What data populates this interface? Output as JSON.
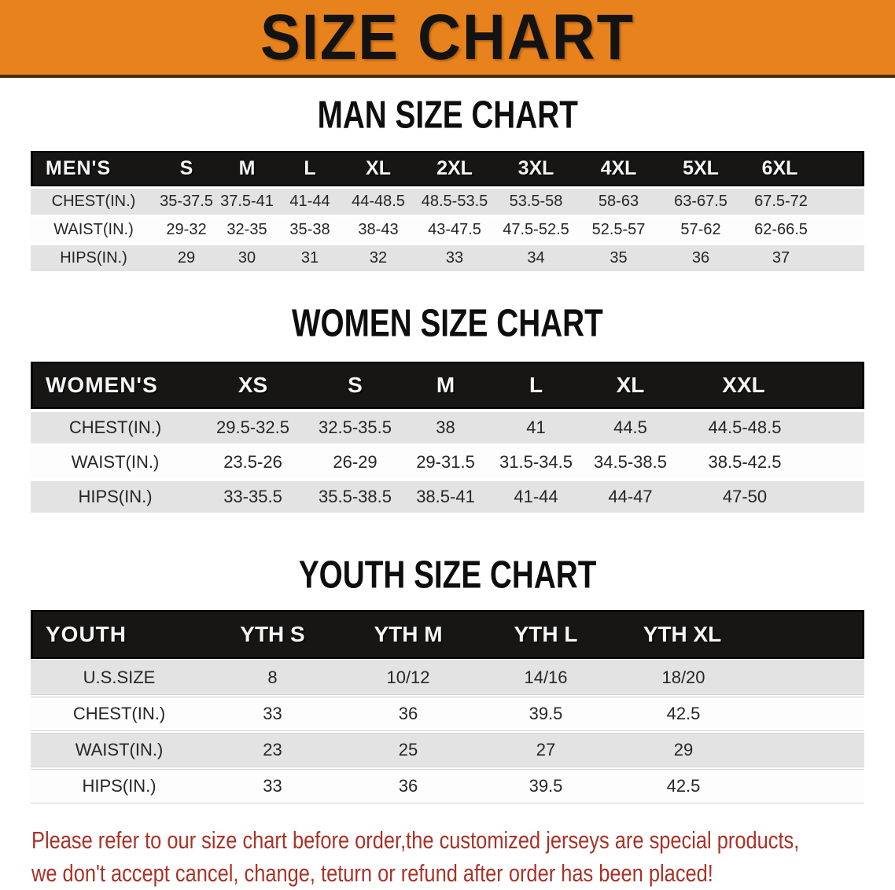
{
  "banner": {
    "title": "SIZE CHART",
    "bg_color": "#e8821c",
    "text_color": "#131313"
  },
  "tables": [
    {
      "title": "MAN SIZE CHART",
      "header": {
        "label": "MEN'S",
        "sizes": [
          "S",
          "M",
          "L",
          "XL",
          "2XL",
          "3XL",
          "4XL",
          "5XL",
          "6XL"
        ]
      },
      "rows": [
        {
          "label": "CHEST(IN.)",
          "values": [
            "35-37.5",
            "37.5-41",
            "41-44",
            "44-48.5",
            "48.5-53.5",
            "53.5-58",
            "58-63",
            "63-67.5",
            "67.5-72"
          ]
        },
        {
          "label": "WAIST(IN.)",
          "values": [
            "29-32",
            "32-35",
            "35-38",
            "38-43",
            "43-47.5",
            "47.5-52.5",
            "52.5-57",
            "57-62",
            "62-66.5"
          ]
        },
        {
          "label": "HIPS(IN.)",
          "values": [
            "29",
            "30",
            "31",
            "32",
            "33",
            "34",
            "35",
            "36",
            "37"
          ]
        }
      ]
    },
    {
      "title": "WOMEN SIZE CHART",
      "header": {
        "label": "WOMEN'S",
        "sizes": [
          "XS",
          "S",
          "M",
          "L",
          "XL",
          "XXL"
        ]
      },
      "rows": [
        {
          "label": "CHEST(IN.)",
          "values": [
            "29.5-32.5",
            "32.5-35.5",
            "38",
            "41",
            "44.5",
            "44.5-48.5"
          ]
        },
        {
          "label": "WAIST(IN.)",
          "values": [
            "23.5-26",
            "26-29",
            "29-31.5",
            "31.5-34.5",
            "34.5-38.5",
            "38.5-42.5"
          ]
        },
        {
          "label": "HIPS(IN.)",
          "values": [
            "33-35.5",
            "35.5-38.5",
            "38.5-41",
            "41-44",
            "44-47",
            "47-50"
          ]
        }
      ]
    },
    {
      "title": "YOUTH SIZE CHART",
      "header": {
        "label": "YOUTH",
        "sizes": [
          "YTH S",
          "YTH M",
          "YTH L",
          "YTH XL"
        ]
      },
      "rows": [
        {
          "label": "U.S.SIZE",
          "values": [
            "8",
            "10/12",
            "14/16",
            "18/20"
          ]
        },
        {
          "label": "CHEST(IN.)",
          "values": [
            "33",
            "36",
            "39.5",
            "42.5"
          ]
        },
        {
          "label": "WAIST(IN.)",
          "values": [
            "23",
            "25",
            "27",
            "29"
          ]
        },
        {
          "label": "HIPS(IN.)",
          "values": [
            "33",
            "36",
            "39.5",
            "42.5"
          ]
        }
      ]
    }
  ],
  "footnote": {
    "line1": "Please refer to our size chart before order,the customized jerseys are special products,",
    "line2": "we don't accept cancel, change, teturn or refund after order has been placed!",
    "color": "#a93227"
  }
}
